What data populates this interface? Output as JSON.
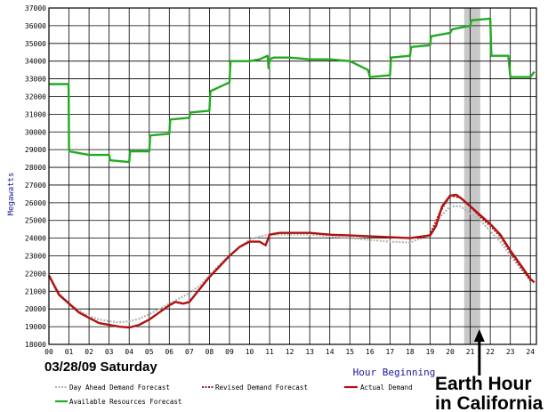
{
  "chart_data": {
    "type": "line",
    "title": "",
    "date_label": "03/28/09 Saturday",
    "ylabel": "Megawatts",
    "xlabel": "Hour Beginning",
    "ylim": [
      18000,
      37000
    ],
    "yticks": [
      18000,
      19000,
      20000,
      21000,
      22000,
      23000,
      24000,
      25000,
      26000,
      27000,
      28000,
      29000,
      30000,
      31000,
      32000,
      33000,
      34000,
      35000,
      36000,
      37000
    ],
    "xlim": [
      0,
      24.3
    ],
    "xticks": [
      "00",
      "01",
      "02",
      "03",
      "04",
      "05",
      "06",
      "07",
      "08",
      "09",
      "10",
      "11",
      "12",
      "13",
      "14",
      "15",
      "16",
      "17",
      "18",
      "19",
      "20",
      "21",
      "22",
      "23",
      "24"
    ],
    "grid": true,
    "legend_position": "bottom",
    "highlight": {
      "x_start": 20.7,
      "x_end": 21.5,
      "color": "#c8c8c8"
    },
    "annotation": {
      "lines": [
        "Earth Hour",
        "in California"
      ],
      "target_x": 21.1
    },
    "series": [
      {
        "name": "Day Ahead Demand Forecast",
        "style": "dotted",
        "color": "#b4b4b4",
        "x": [
          0,
          0.5,
          1,
          1.5,
          2,
          2.5,
          3,
          3.5,
          4,
          4.5,
          5,
          5.5,
          6,
          6.5,
          7,
          7.5,
          8,
          8.5,
          9,
          9.5,
          10,
          10.5,
          11,
          12,
          13,
          14,
          15,
          16,
          17,
          18,
          19,
          19.5,
          20,
          20.5,
          21,
          21.5,
          22,
          22.5,
          23,
          23.5,
          24
        ],
        "y": [
          21900,
          20900,
          20300,
          19900,
          19600,
          19400,
          19300,
          19250,
          19300,
          19450,
          19700,
          20000,
          20300,
          20600,
          20900,
          21300,
          21900,
          22500,
          23000,
          23500,
          23900,
          24100,
          24200,
          24200,
          24200,
          24100,
          24000,
          23900,
          23800,
          23750,
          24200,
          25200,
          25800,
          25800,
          25400,
          25000,
          24400,
          23800,
          23000,
          22300,
          21700
        ]
      },
      {
        "name": "Revised Demand Forecast",
        "style": "dotted",
        "color": "#a02020",
        "x": [
          18.5,
          19,
          19.5,
          20,
          20.5,
          21,
          21.5,
          22,
          22.5,
          23,
          23.5,
          24
        ],
        "y": [
          24000,
          24200,
          25500,
          26400,
          26300,
          25800,
          25200,
          24700,
          24100,
          23200,
          22400,
          21600
        ]
      },
      {
        "name": "Actual Demand",
        "style": "solid",
        "color": "#b01010",
        "x": [
          0,
          0.5,
          1,
          1.5,
          2,
          2.5,
          3,
          3.5,
          4,
          4.5,
          5,
          5.5,
          6,
          6.3,
          6.7,
          7,
          7.5,
          8,
          8.5,
          9,
          9.5,
          10,
          10.5,
          10.8,
          11,
          11.5,
          12,
          13,
          14,
          15,
          16,
          17,
          18,
          19,
          19.3,
          19.6,
          20,
          20.3,
          20.6,
          21,
          21.5,
          22,
          22.5,
          23,
          23.5,
          24,
          24.2
        ],
        "y": [
          21900,
          20800,
          20300,
          19800,
          19500,
          19200,
          19100,
          19000,
          18950,
          19100,
          19400,
          19800,
          20200,
          20400,
          20300,
          20400,
          21100,
          21800,
          22400,
          23000,
          23500,
          23800,
          23800,
          23600,
          24200,
          24300,
          24300,
          24300,
          24200,
          24150,
          24100,
          24050,
          24000,
          24150,
          24700,
          25800,
          26400,
          26450,
          26200,
          25800,
          25300,
          24800,
          24200,
          23300,
          22500,
          21700,
          21500
        ]
      },
      {
        "name": "Available Resources Forecast",
        "style": "solid",
        "color": "#22aa22",
        "x": [
          0,
          0.98,
          1,
          1.02,
          1.5,
          2,
          3,
          3.05,
          4,
          4.05,
          5,
          5.05,
          6,
          6.05,
          7,
          7.05,
          8,
          8.05,
          9,
          9.05,
          10,
          10.5,
          10.9,
          10.95,
          11,
          11.2,
          12,
          13,
          14,
          15,
          15.9,
          16,
          17,
          17.05,
          18,
          18.05,
          19,
          19.05,
          20,
          20.1,
          21,
          21.05,
          22,
          22.05,
          22.9,
          23,
          24,
          24.2
        ],
        "y": [
          32700,
          32700,
          29000,
          28900,
          28800,
          28700,
          28700,
          28400,
          28300,
          28900,
          28900,
          29800,
          29900,
          30700,
          30800,
          31100,
          31200,
          32300,
          32800,
          34000,
          34000,
          34100,
          34300,
          33600,
          34100,
          34200,
          34200,
          34100,
          34100,
          34000,
          33500,
          33100,
          33200,
          34200,
          34300,
          34800,
          34900,
          35400,
          35600,
          35800,
          36000,
          36300,
          36400,
          34300,
          34300,
          33100,
          33100,
          33400
        ]
      }
    ]
  }
}
